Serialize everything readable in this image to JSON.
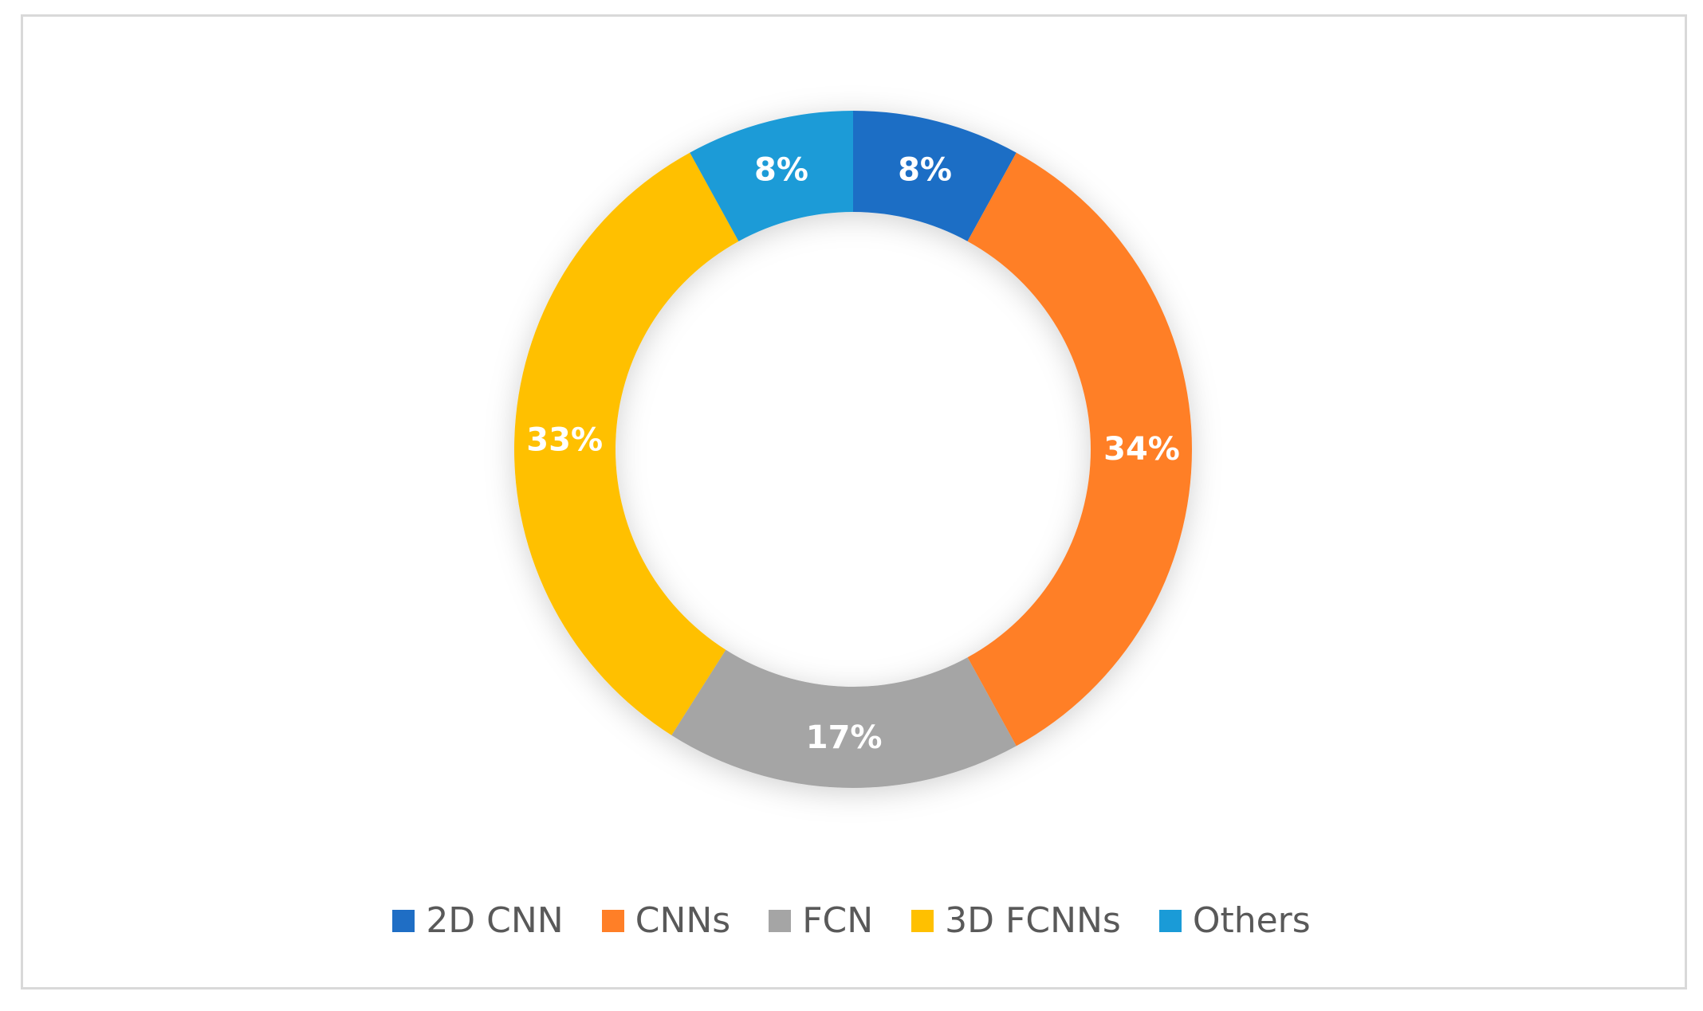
{
  "chart_data": {
    "type": "pie",
    "variant": "donut",
    "categories": [
      "2D CNN",
      "CNNs",
      "FCN",
      "3D FCNNs",
      "Others"
    ],
    "values": [
      8,
      34,
      17,
      33,
      8
    ],
    "data_labels": [
      "8%",
      "34%",
      "17%",
      "33%",
      "8%"
    ],
    "colors": [
      "#1F6EC5",
      "#FF7F27",
      "#A5A5A5",
      "#FFC000",
      "#1A9BD7"
    ],
    "legend_position": "bottom",
    "start_angle": "top, clockwise",
    "title": ""
  }
}
